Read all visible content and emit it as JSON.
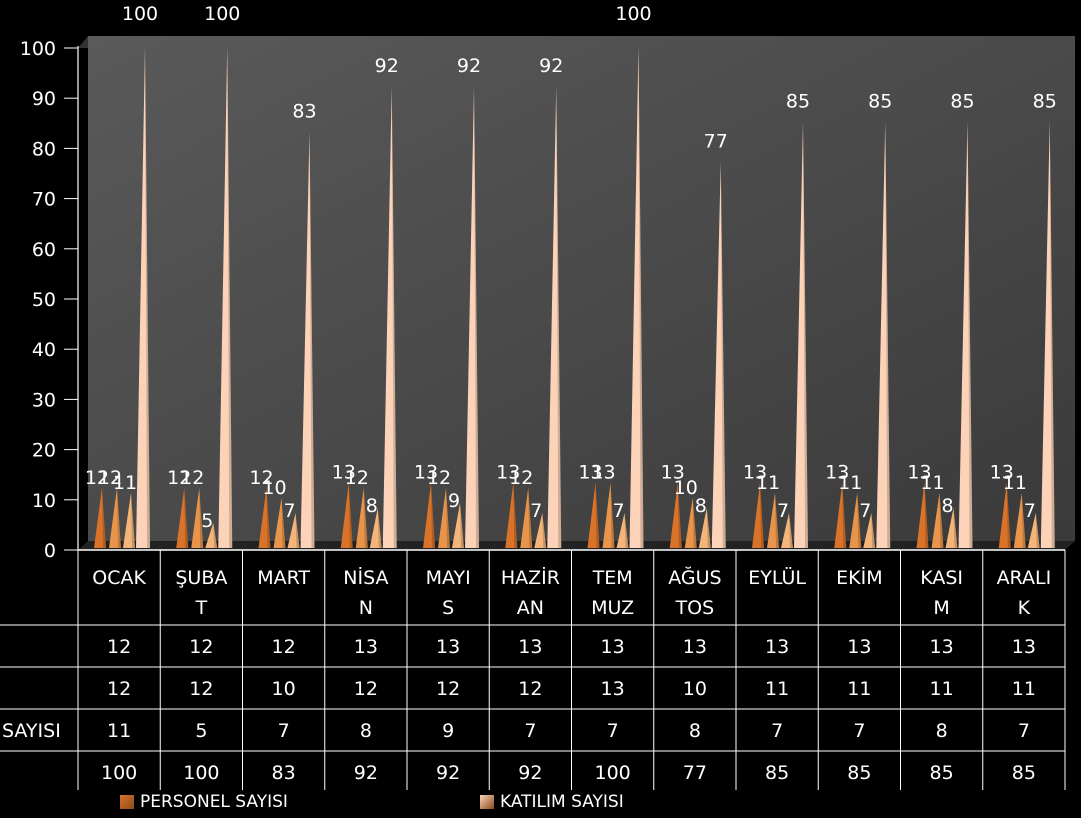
{
  "chart_data": {
    "type": "bar",
    "ylim": [
      0,
      100
    ],
    "yticks": [
      0,
      10,
      20,
      30,
      40,
      50,
      60,
      70,
      80,
      90,
      100
    ],
    "categories": [
      "OCAK",
      "ŞUBAT",
      "MART",
      "NİSAN",
      "MAYIS",
      "HAZİRAN",
      "TEMMUZ",
      "AĞUSTOS",
      "EYLÜL",
      "EKİM",
      "KASIM",
      "ARALIK"
    ],
    "category_lines": [
      [
        "OCAK"
      ],
      [
        "ŞUBA",
        "T"
      ],
      [
        "MART"
      ],
      [
        "NİSA",
        "N"
      ],
      [
        "MAYI",
        "S"
      ],
      [
        "HAZİR",
        "AN"
      ],
      [
        "TEM",
        "MUZ"
      ],
      [
        "AĞUS",
        "TOS"
      ],
      [
        "EYLÜL"
      ],
      [
        "EKİM"
      ],
      [
        "KASI",
        "M"
      ],
      [
        "ARALI",
        "K"
      ]
    ],
    "series": [
      {
        "name": "PERSONEL SAYISI",
        "table_label": "",
        "color": "#d9732a",
        "values": [
          12,
          12,
          12,
          13,
          13,
          13,
          13,
          13,
          13,
          13,
          13,
          13
        ]
      },
      {
        "name": "",
        "table_label": "",
        "color": "#e8944a",
        "values": [
          12,
          12,
          10,
          12,
          12,
          12,
          13,
          10,
          11,
          11,
          11,
          11
        ]
      },
      {
        "name": "",
        "table_label": "SAYISI",
        "color": "#f4b57a",
        "values": [
          11,
          5,
          7,
          8,
          9,
          7,
          7,
          8,
          7,
          7,
          8,
          7
        ]
      },
      {
        "name": "KATILIM SAYISI",
        "table_label": "",
        "color": "#fcd3b8",
        "values": [
          100,
          100,
          83,
          92,
          92,
          92,
          100,
          77,
          85,
          85,
          85,
          85
        ]
      }
    ]
  }
}
